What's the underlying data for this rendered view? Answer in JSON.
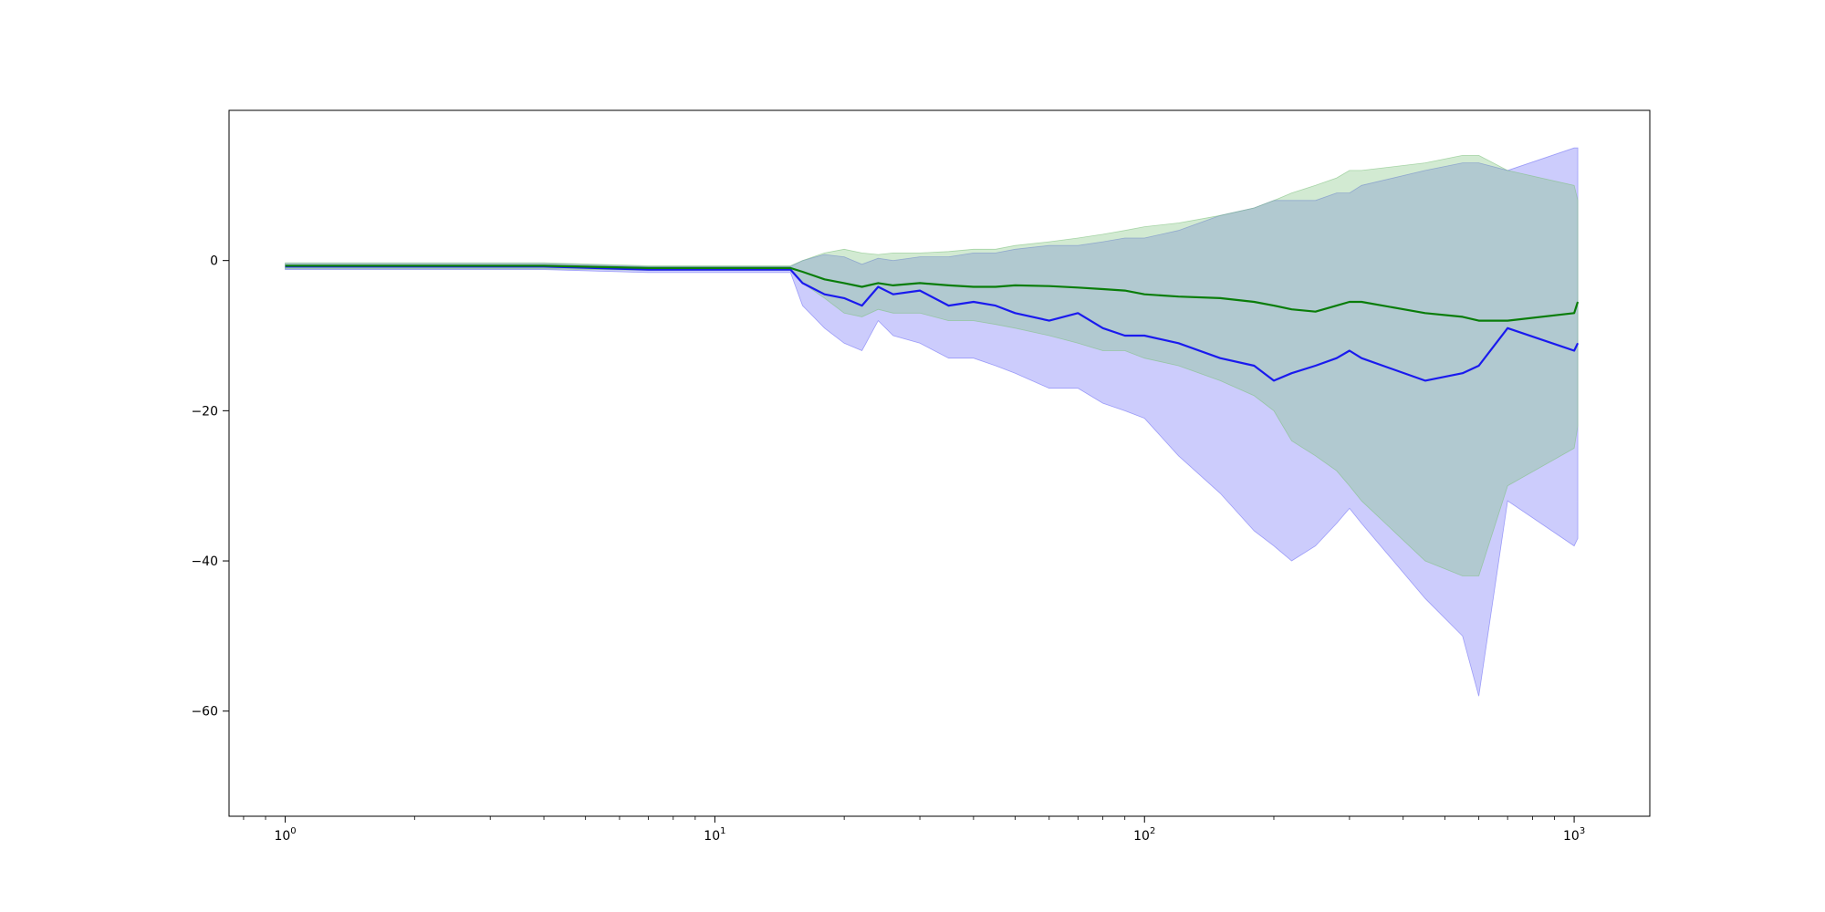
{
  "chart_data": {
    "type": "line",
    "title": "",
    "xlabel": "",
    "ylabel": "",
    "xscale": "log",
    "xlim": [
      0.74,
      1500
    ],
    "ylim": [
      -74,
      20
    ],
    "grid": false,
    "legend": "none",
    "x_ticks": [
      {
        "value": 1,
        "base": "10",
        "exp": "0"
      },
      {
        "value": 10,
        "base": "10",
        "exp": "1"
      },
      {
        "value": 100,
        "base": "10",
        "exp": "2"
      },
      {
        "value": 1000,
        "base": "10",
        "exp": "3"
      }
    ],
    "y_ticks": [
      {
        "value": 0,
        "label": "0"
      },
      {
        "value": -20,
        "label": "−20"
      },
      {
        "value": -40,
        "label": "−40"
      },
      {
        "value": -60,
        "label": "−60"
      }
    ],
    "series": [
      {
        "color": "#1a1aee",
        "band_color": "#6e6ef5",
        "band_opacity": 0.35,
        "x": [
          1,
          2,
          4,
          7,
          10,
          15,
          16,
          18,
          20,
          22,
          24,
          26,
          30,
          35,
          40,
          45,
          50,
          60,
          70,
          80,
          90,
          100,
          120,
          150,
          180,
          200,
          220,
          250,
          280,
          300,
          320,
          450,
          550,
          600,
          700,
          1000,
          1020
        ],
        "y": [
          -0.8,
          -0.8,
          -0.8,
          -1.2,
          -1.2,
          -1.2,
          -3,
          -4.5,
          -5,
          -6,
          -3.5,
          -4.5,
          -4,
          -6,
          -5.5,
          -6,
          -7,
          -8,
          -7,
          -9,
          -10,
          -10,
          -11,
          -13,
          -14,
          -16,
          -15,
          -14,
          -13,
          -12,
          -13,
          -16,
          -15,
          -14,
          -9,
          -12,
          -11
        ],
        "lower": [
          -1.2,
          -1.2,
          -1.2,
          -1.6,
          -1.6,
          -1.6,
          -6,
          -9,
          -11,
          -12,
          -8,
          -10,
          -11,
          -13,
          -13,
          -14,
          -15,
          -17,
          -17,
          -19,
          -20,
          -21,
          -26,
          -31,
          -36,
          -38,
          -40,
          -38,
          -35,
          -33,
          -35,
          -45,
          -50,
          -58,
          -32,
          -38,
          -37
        ],
        "upper": [
          -0.4,
          -0.4,
          -0.4,
          -0.8,
          -0.8,
          -0.8,
          0,
          0.8,
          0.5,
          -0.5,
          0.3,
          0,
          0.5,
          0.5,
          1,
          1,
          1.5,
          2,
          2,
          2.5,
          3,
          3,
          4,
          6,
          7,
          8,
          8,
          8,
          9,
          9,
          10,
          12,
          13,
          13,
          12,
          15,
          15
        ]
      },
      {
        "color": "#0a7d0a",
        "band_color": "#7fc27f",
        "band_opacity": 0.35,
        "x": [
          1,
          2,
          4,
          7,
          10,
          15,
          16,
          18,
          20,
          22,
          24,
          26,
          30,
          35,
          40,
          45,
          50,
          60,
          70,
          80,
          90,
          100,
          120,
          150,
          180,
          200,
          220,
          250,
          280,
          300,
          320,
          450,
          550,
          600,
          700,
          1000,
          1020
        ],
        "y": [
          -0.7,
          -0.7,
          -0.7,
          -1,
          -1,
          -1,
          -1.5,
          -2.5,
          -3,
          -3.5,
          -3,
          -3.3,
          -3,
          -3.3,
          -3.5,
          -3.5,
          -3.3,
          -3.4,
          -3.6,
          -3.8,
          -4,
          -4.5,
          -4.8,
          -5,
          -5.5,
          -6,
          -6.5,
          -6.8,
          -6,
          -5.5,
          -5.5,
          -7,
          -7.5,
          -8,
          -8,
          -7,
          -5.5
        ],
        "lower": [
          -1.1,
          -1.1,
          -1.1,
          -1.3,
          -1.3,
          -1.3,
          -3,
          -5,
          -7,
          -7.5,
          -6.5,
          -7,
          -7,
          -8,
          -8,
          -8.5,
          -9,
          -10,
          -11,
          -12,
          -12,
          -13,
          -14,
          -16,
          -18,
          -20,
          -24,
          -26,
          -28,
          -30,
          -32,
          -40,
          -42,
          -42,
          -30,
          -25,
          -22
        ],
        "upper": [
          -0.3,
          -0.3,
          -0.3,
          -0.7,
          -0.7,
          -0.7,
          0,
          1,
          1.5,
          1,
          0.8,
          1,
          1,
          1.2,
          1.5,
          1.5,
          2,
          2.5,
          3,
          3.5,
          4,
          4.5,
          5,
          6,
          7,
          8,
          9,
          10,
          11,
          12,
          12,
          13,
          14,
          14,
          12,
          10,
          8
        ]
      }
    ]
  }
}
